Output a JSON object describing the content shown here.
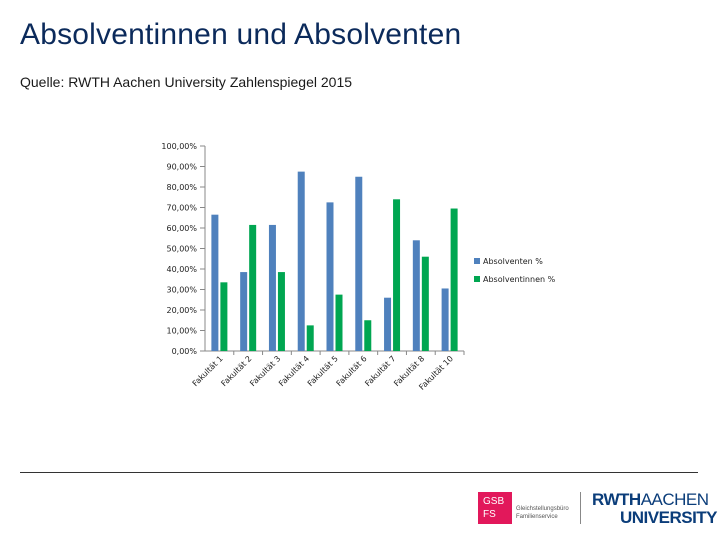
{
  "slide": {
    "title": "Absolventinnen und Absolventen",
    "source": "Quelle: RWTH Aachen University Zahlenspiegel 2015"
  },
  "logos": {
    "gsb_line1": "GSB",
    "gsb_line2": "FS",
    "gsb_text_line1": "Gleichstellungsbüro",
    "gsb_text_line2": "Familienservice",
    "rwth_bold": "RWTH",
    "rwth_light": "AACHEN",
    "university": "UNIVERSITY"
  },
  "chart_data": {
    "type": "bar",
    "categories": [
      "Fakultät 1",
      "Fakultät 2",
      "Fakultät 3",
      "Fakultät 4",
      "Fakultät 5",
      "Fakultät 6",
      "Fakultät 7",
      "Fakultät 8",
      "Fakultät 10"
    ],
    "series": [
      {
        "name": "Absolventen %",
        "color": "#4f81bd",
        "values": [
          66.5,
          38.5,
          61.5,
          87.5,
          72.5,
          85,
          26,
          54,
          30.5
        ]
      },
      {
        "name": "Absolventinnen %",
        "color": "#00a651",
        "values": [
          33.5,
          61.5,
          38.5,
          12.5,
          27.5,
          15,
          74,
          46,
          69.5
        ]
      }
    ],
    "yticks": [
      "0,00%",
      "10,00%",
      "20,00%",
      "30,00%",
      "40,00%",
      "50,00%",
      "60,00%",
      "70,00%",
      "80,00%",
      "90,00%",
      "100,00%"
    ],
    "ylim": [
      0,
      100
    ],
    "legend_position": "right",
    "title": "",
    "xlabel": "",
    "ylabel": ""
  }
}
